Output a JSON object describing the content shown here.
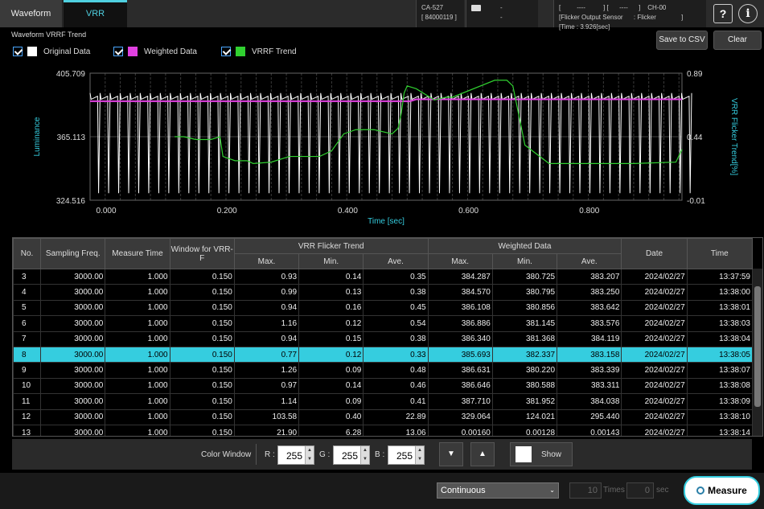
{
  "tabs": [
    {
      "label": "Waveform"
    },
    {
      "label": "VRR"
    }
  ],
  "device": {
    "model": "CA-527",
    "serial": "[ 84000119 ]",
    "probe_line1": "-",
    "probe_line2": "-",
    "sensor_line1": "[         ----          ] [      ----      ]    CH-00",
    "sensor_line2": "[Flicker Output Sensor      : Flicker              ]",
    "sensor_line3": "[Time : 3.926[sec]"
  },
  "header_icons": [
    {
      "name": "help-icon",
      "glyph": "?"
    },
    {
      "name": "info-icon",
      "glyph": "i"
    }
  ],
  "trend": {
    "title": "Waveform VRRF Trend",
    "legend": [
      {
        "label": "Original Data",
        "color": "#ffffff"
      },
      {
        "label": "Weighted Data",
        "color": "#e040e0"
      },
      {
        "label": "VRRF Trend",
        "color": "#30d030"
      }
    ],
    "save_label": "Save to CSV",
    "clear_label": "Clear"
  },
  "chart_data": {
    "type": "line",
    "xlabel": "Time [sec]",
    "ylabel": "Luminance",
    "y2label": "VRR Flicker Trend[%]",
    "x_ticks": [
      "0.000",
      "0.200",
      "0.400",
      "0.600",
      "0.800"
    ],
    "xlim": [
      0.0,
      0.98
    ],
    "y_ticks": [
      "405.709",
      "365.113",
      "324.516"
    ],
    "ylim": [
      324.516,
      405.709
    ],
    "y2_ticks": [
      "0.89",
      "0.44",
      "-0.01"
    ],
    "y2lim": [
      -0.01,
      0.89
    ],
    "series": [
      {
        "name": "Original Data",
        "color": "#ffffff",
        "period": 0.0166,
        "high": 393,
        "low": 329
      },
      {
        "name": "Weighted Data",
        "color": "#e040e0",
        "x": [
          0.0,
          0.53,
          0.54,
          0.98
        ],
        "y": [
          387.8,
          387.8,
          389.0,
          389.0
        ]
      },
      {
        "name": "VRRF Trend",
        "color": "#30d030",
        "x": [
          0.14,
          0.155,
          0.175,
          0.2,
          0.215,
          0.22,
          0.24,
          0.26,
          0.27,
          0.3,
          0.33,
          0.38,
          0.4,
          0.42,
          0.44,
          0.47,
          0.5,
          0.51,
          0.515,
          0.52,
          0.525,
          0.54,
          0.57,
          0.59,
          0.6,
          0.67,
          0.69,
          0.7,
          0.72,
          0.76,
          0.8,
          0.9,
          0.97,
          0.98
        ],
        "y": [
          0.44,
          0.44,
          0.42,
          0.42,
          0.44,
          0.3,
          0.27,
          0.27,
          0.25,
          0.26,
          0.3,
          0.3,
          0.34,
          0.46,
          0.49,
          0.49,
          0.46,
          0.5,
          0.6,
          0.75,
          0.8,
          0.78,
          0.7,
          0.72,
          0.72,
          0.84,
          0.84,
          0.8,
          0.38,
          0.25,
          0.25,
          0.25,
          0.26,
          0.35
        ]
      }
    ]
  },
  "table": {
    "headers": {
      "no": "No.",
      "sampling": "Sampling Freq.",
      "measure": "Measure Time",
      "window": "Window for VRR-F",
      "vrr_group": "VRR Flicker Trend",
      "weighted_group": "Weighted Data",
      "max": "Max.",
      "min": "Min.",
      "ave": "Ave.",
      "date": "Date",
      "time": "Time"
    },
    "rows": [
      {
        "no": "3",
        "freq": "3000.00",
        "mt": "1.000",
        "win": "0.150",
        "vmax": "0.93",
        "vmin": "0.14",
        "vave": "0.35",
        "wmax": "384.287",
        "wmin": "380.725",
        "wave": "383.207",
        "date": "2024/02/27",
        "time": "13:37:59"
      },
      {
        "no": "4",
        "freq": "3000.00",
        "mt": "1.000",
        "win": "0.150",
        "vmax": "0.99",
        "vmin": "0.13",
        "vave": "0.38",
        "wmax": "384.570",
        "wmin": "380.795",
        "wave": "383.250",
        "date": "2024/02/27",
        "time": "13:38:00"
      },
      {
        "no": "5",
        "freq": "3000.00",
        "mt": "1.000",
        "win": "0.150",
        "vmax": "0.94",
        "vmin": "0.16",
        "vave": "0.45",
        "wmax": "386.108",
        "wmin": "380.856",
        "wave": "383.642",
        "date": "2024/02/27",
        "time": "13:38:01"
      },
      {
        "no": "6",
        "freq": "3000.00",
        "mt": "1.000",
        "win": "0.150",
        "vmax": "1.16",
        "vmin": "0.12",
        "vave": "0.54",
        "wmax": "386.886",
        "wmin": "381.145",
        "wave": "383.576",
        "date": "2024/02/27",
        "time": "13:38:03"
      },
      {
        "no": "7",
        "freq": "3000.00",
        "mt": "1.000",
        "win": "0.150",
        "vmax": "0.94",
        "vmin": "0.15",
        "vave": "0.38",
        "wmax": "386.340",
        "wmin": "381.368",
        "wave": "384.119",
        "date": "2024/02/27",
        "time": "13:38:04"
      },
      {
        "no": "8",
        "freq": "3000.00",
        "mt": "1.000",
        "win": "0.150",
        "vmax": "0.77",
        "vmin": "0.12",
        "vave": "0.33",
        "wmax": "385.693",
        "wmin": "382.337",
        "wave": "383.158",
        "date": "2024/02/27",
        "time": "13:38:05",
        "selected": true
      },
      {
        "no": "9",
        "freq": "3000.00",
        "mt": "1.000",
        "win": "0.150",
        "vmax": "1.26",
        "vmin": "0.09",
        "vave": "0.48",
        "wmax": "386.631",
        "wmin": "380.220",
        "wave": "383.339",
        "date": "2024/02/27",
        "time": "13:38:07"
      },
      {
        "no": "10",
        "freq": "3000.00",
        "mt": "1.000",
        "win": "0.150",
        "vmax": "0.97",
        "vmin": "0.14",
        "vave": "0.46",
        "wmax": "386.646",
        "wmin": "380.588",
        "wave": "383.311",
        "date": "2024/02/27",
        "time": "13:38:08"
      },
      {
        "no": "11",
        "freq": "3000.00",
        "mt": "1.000",
        "win": "0.150",
        "vmax": "1.14",
        "vmin": "0.09",
        "vave": "0.41",
        "wmax": "387.710",
        "wmin": "381.952",
        "wave": "384.038",
        "date": "2024/02/27",
        "time": "13:38:09"
      },
      {
        "no": "12",
        "freq": "3000.00",
        "mt": "1.000",
        "win": "0.150",
        "vmax": "103.58",
        "vmin": "0.40",
        "vave": "22.89",
        "wmax": "329.064",
        "wmin": "124.021",
        "wave": "295.440",
        "date": "2024/02/27",
        "time": "13:38:10"
      },
      {
        "no": "13",
        "freq": "3000.00",
        "mt": "1.000",
        "win": "0.150",
        "vmax": "21.90",
        "vmin": "6.28",
        "vave": "13.06",
        "wmax": "0.00160",
        "wmin": "0.00128",
        "wave": "0.00143",
        "date": "2024/02/27",
        "time": "13:38:14"
      }
    ]
  },
  "color_window": {
    "label": "Color Window",
    "r_label": "R :",
    "r_value": "255",
    "g_label": "G :",
    "g_value": "255",
    "b_label": "B :",
    "b_value": "255",
    "down_glyph": "▼",
    "up_glyph": "▲",
    "show_label": "Show"
  },
  "measure_bar": {
    "mode": "Continuous",
    "times_value": "10",
    "times_unit": "Times",
    "sec_value": "0",
    "sec_unit": "sec",
    "measure_label": "Measure"
  }
}
